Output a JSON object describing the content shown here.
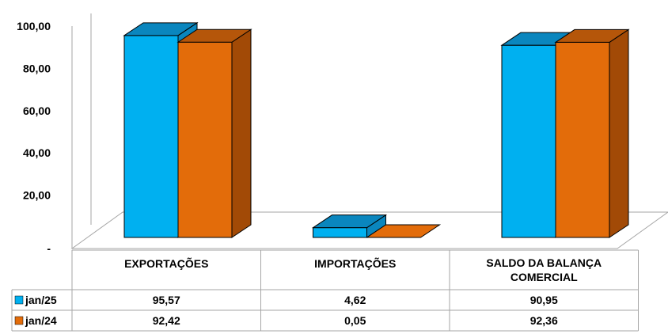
{
  "chart_data": {
    "type": "bar",
    "categories": [
      [
        "EXPORTAÇÕES"
      ],
      [
        "IMPORTAÇÕES"
      ],
      [
        "SALDO DA BALANÇA",
        "COMERCIAL"
      ]
    ],
    "series": [
      {
        "name": "jan/25",
        "color": "#00B0F0",
        "top_color": "#0A86BE",
        "side_color": "#0A86BE",
        "values": [
          95.57,
          4.62,
          90.95
        ],
        "labels": [
          "95,57",
          "4,62",
          "90,95"
        ]
      },
      {
        "name": "jan/24",
        "color": "#E36C0A",
        "top_color": "#B5560A",
        "side_color": "#A24A06",
        "values": [
          92.42,
          0.05,
          92.36
        ],
        "labels": [
          "92,42",
          "0,05",
          "92,36"
        ]
      }
    ],
    "y_ticks": [
      {
        "value": 0,
        "label": "-"
      },
      {
        "value": 20,
        "label": "20,00"
      },
      {
        "value": 40,
        "label": "40,00"
      },
      {
        "value": 60,
        "label": "60,00"
      },
      {
        "value": 80,
        "label": "80,00"
      },
      {
        "value": 100,
        "label": "100,00"
      }
    ],
    "ylim": [
      0,
      100
    ],
    "legend_placement": "data-table",
    "grid": false
  }
}
